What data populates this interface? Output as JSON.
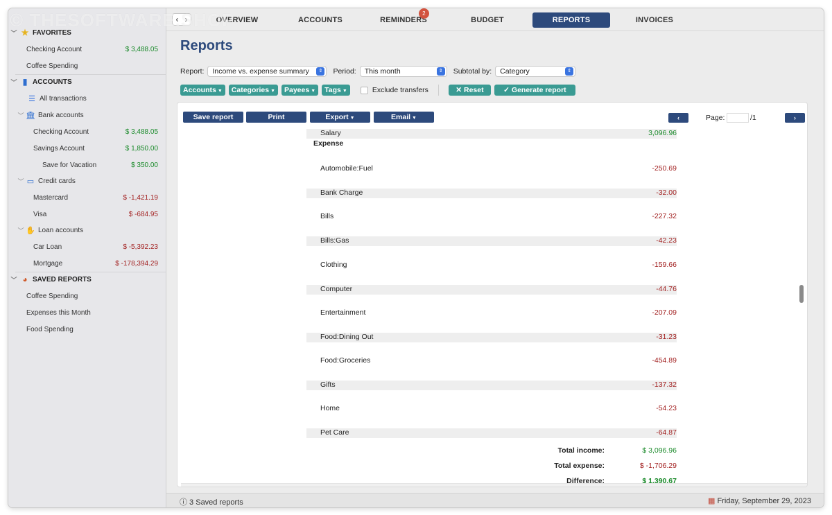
{
  "watermark": "© THESOFTWARE.SHOP",
  "nav": {
    "back": "‹",
    "forward": "›"
  },
  "tabs": [
    {
      "label": "OVERVIEW"
    },
    {
      "label": "ACCOUNTS"
    },
    {
      "label": "REMINDERS",
      "badge": "2"
    },
    {
      "label": "BUDGET"
    },
    {
      "label": "REPORTS",
      "active": true
    },
    {
      "label": "INVOICES"
    }
  ],
  "sidebar": {
    "favorites": {
      "title": "FAVORITES",
      "icon": "star-icon",
      "items": [
        {
          "label": "Checking Account",
          "amount": "$ 3,488.05"
        },
        {
          "label": "Coffee Spending",
          "amount": ""
        }
      ]
    },
    "accounts": {
      "title": "ACCOUNTS",
      "icon": "book-icon",
      "all": "All transactions",
      "groups": [
        {
          "label": "Bank accounts",
          "icon": "bank-icon",
          "items": [
            {
              "label": "Checking Account",
              "amount": "$ 3,488.05"
            },
            {
              "label": "Savings Account",
              "amount": "$ 1,850.00"
            },
            {
              "label": "Save for Vacation",
              "amount": "$ 350.00"
            }
          ]
        },
        {
          "label": "Credit cards",
          "icon": "credit-card-icon",
          "items": [
            {
              "label": "Mastercard",
              "amount": "$ -1,421.19"
            },
            {
              "label": "Visa",
              "amount": "$ -684.95"
            }
          ]
        },
        {
          "label": "Loan accounts",
          "icon": "loan-icon",
          "items": [
            {
              "label": "Car Loan",
              "amount": "$ -5,392.23"
            },
            {
              "label": "Mortgage",
              "amount": "$ -178,394.29"
            }
          ]
        }
      ]
    },
    "saved_reports": {
      "title": "SAVED REPORTS",
      "icon": "pie-chart-icon",
      "items": [
        "Coffee Spending",
        "Expenses this Month",
        "Food Spending"
      ]
    }
  },
  "main": {
    "title": "Reports",
    "report_label": "Report:",
    "report_value": "Income vs. expense summary",
    "period_label": "Period:",
    "period_value": "This month",
    "subtotal_label": "Subtotal by:",
    "subtotal_value": "Category",
    "filters": [
      "Accounts",
      "Categories",
      "Payees",
      "Tags"
    ],
    "exclude_transfers": "Exclude transfers",
    "reset": "Reset",
    "generate": "Generate report"
  },
  "toolbar": {
    "save": "Save report",
    "print": "Print",
    "export": "Export",
    "email": "Email",
    "page_label": "Page:",
    "page_total": "/1",
    "prev": "‹",
    "next": "›"
  },
  "report": {
    "income_row": {
      "label": "Salary",
      "value": "3,096.96"
    },
    "expense_heading": "Expense",
    "expense_rows": [
      {
        "label": "Automobile:Fuel",
        "value": "-250.69"
      },
      {
        "label": "Bank Charge",
        "value": "-32.00"
      },
      {
        "label": "Bills",
        "value": "-227.32"
      },
      {
        "label": "Bills:Gas",
        "value": "-42.23"
      },
      {
        "label": "Clothing",
        "value": "-159.66"
      },
      {
        "label": "Computer",
        "value": "-44.76"
      },
      {
        "label": "Entertainment",
        "value": "-207.09"
      },
      {
        "label": "Food:Dining Out",
        "value": "-31.23"
      },
      {
        "label": "Food:Groceries",
        "value": "-454.89"
      },
      {
        "label": "Gifts",
        "value": "-137.32"
      },
      {
        "label": "Home",
        "value": "-54.23"
      },
      {
        "label": "Pet Care",
        "value": "-64.87"
      }
    ],
    "totals": [
      {
        "label": "Total income:",
        "value": "$ 3,096.96",
        "kind": "pos"
      },
      {
        "label": "Total expense:",
        "value": "$ -1,706.29",
        "kind": "neg"
      },
      {
        "label": "Difference:",
        "value": "$ 1,390.67",
        "kind": "pos-bold"
      }
    ]
  },
  "status": {
    "left": "ⓘ 3 Saved reports",
    "right": "Friday, September 29, 2023"
  },
  "colors": {
    "accent": "#2d4a7c",
    "teal": "#3a9b93",
    "positive": "#1a8a2a",
    "negative": "#a32222"
  }
}
